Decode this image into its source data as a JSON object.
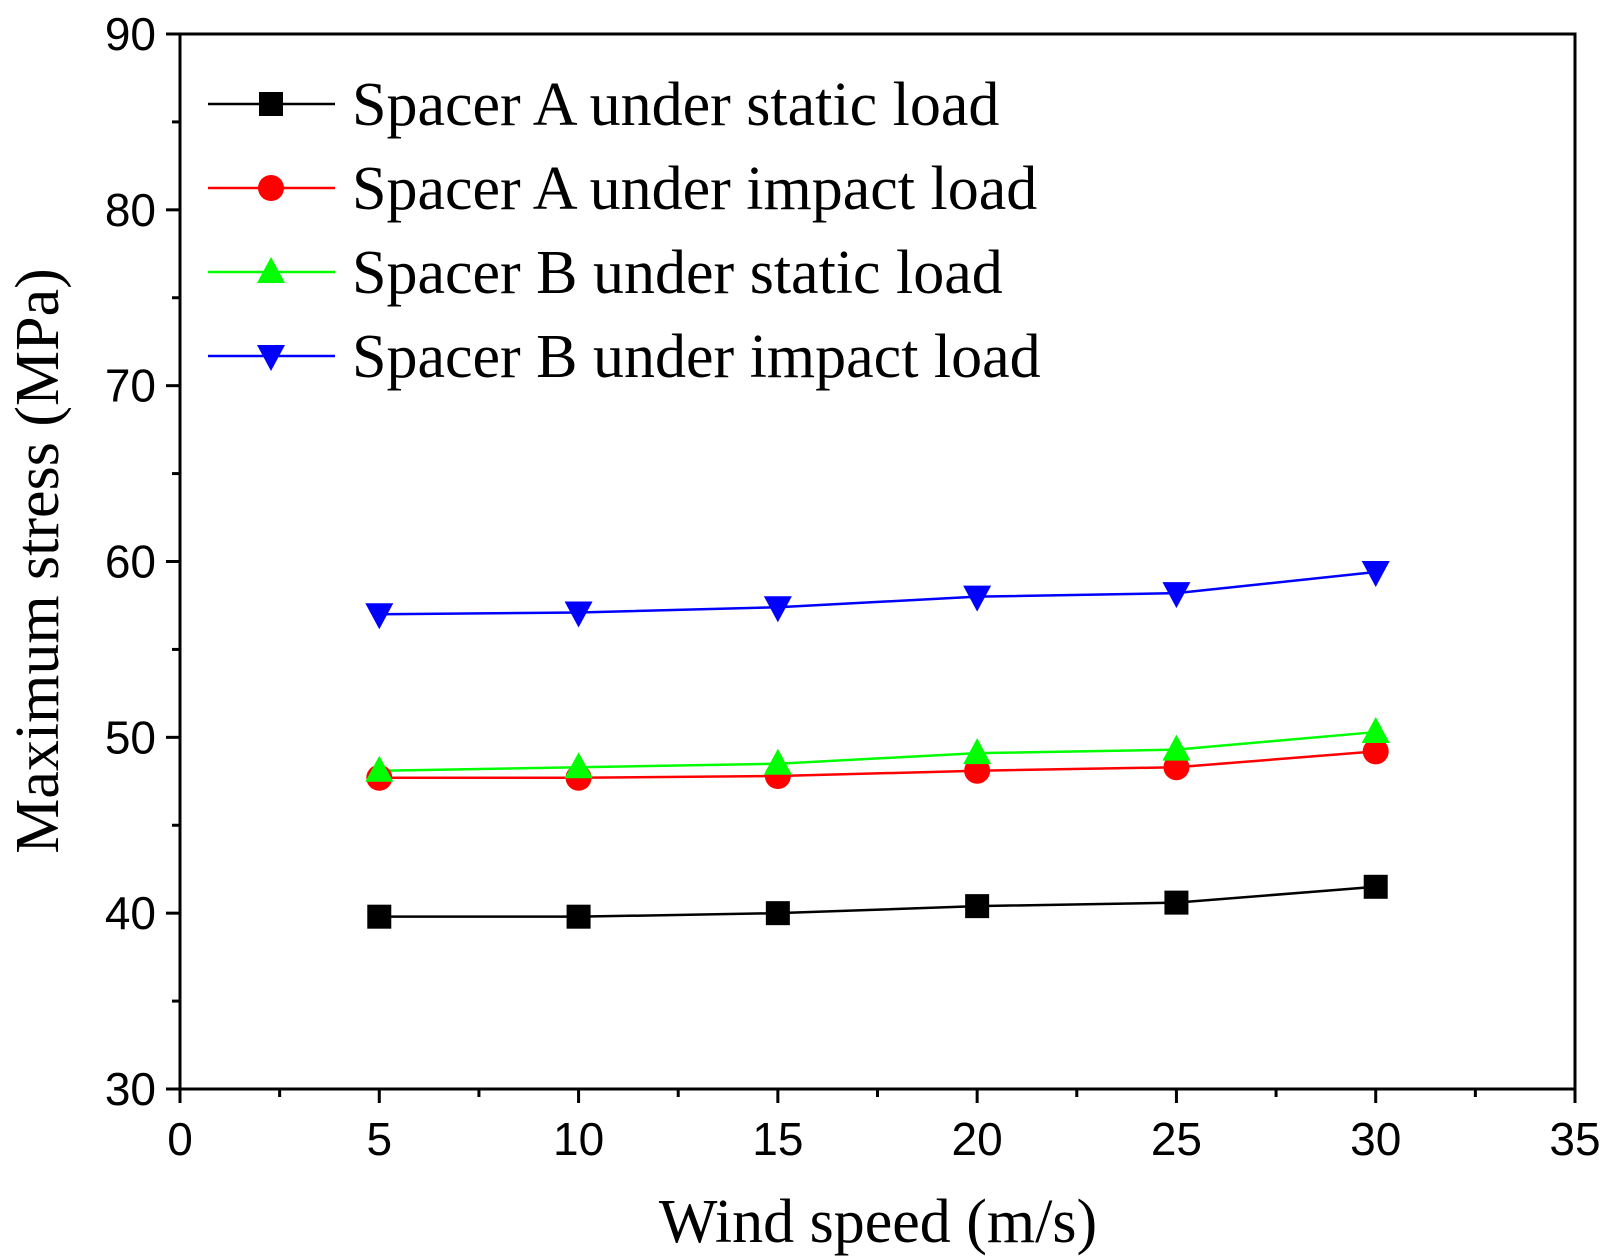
{
  "chart_data": {
    "type": "line",
    "title": "",
    "xlabel": "Wind speed (m/s)",
    "ylabel": "Maximum stress (MPa)",
    "xlim": [
      0,
      35
    ],
    "ylim": [
      30,
      90
    ],
    "xticks": [
      0,
      5,
      10,
      15,
      20,
      25,
      30,
      35
    ],
    "yticks": [
      30,
      40,
      50,
      60,
      70,
      80,
      90
    ],
    "grid": false,
    "legend_position": "top-left",
    "x": [
      5,
      10,
      15,
      20,
      25,
      30
    ],
    "series": [
      {
        "name": "Spacer A under static load",
        "color": "#000000",
        "marker": "square",
        "values": [
          39.8,
          39.8,
          40.0,
          40.4,
          40.6,
          41.5
        ]
      },
      {
        "name": "Spacer A under impact load",
        "color": "#ff0000",
        "marker": "circle",
        "values": [
          47.7,
          47.7,
          47.8,
          48.1,
          48.3,
          49.2
        ]
      },
      {
        "name": "Spacer B under static load",
        "color": "#00ff00",
        "marker": "triangle-up",
        "values": [
          48.1,
          48.3,
          48.5,
          49.1,
          49.3,
          50.3
        ]
      },
      {
        "name": "Spacer B under impact load",
        "color": "#0000ff",
        "marker": "triangle-down",
        "values": [
          57.0,
          57.1,
          57.4,
          58.0,
          58.2,
          59.4
        ]
      }
    ]
  }
}
